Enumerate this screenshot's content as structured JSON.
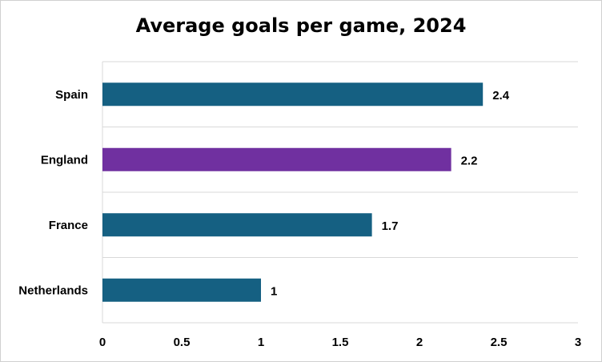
{
  "chart_data": {
    "type": "bar",
    "orientation": "horizontal",
    "title": "Average goals per game, 2024",
    "categories": [
      "Spain",
      "England",
      "France",
      "Netherlands"
    ],
    "values": [
      2.4,
      2.2,
      1.7,
      1
    ],
    "value_labels": [
      "2.4",
      "2.2",
      "1.7",
      "1"
    ],
    "bar_colors": [
      "#156082",
      "#7030a0",
      "#156082",
      "#156082"
    ],
    "xlim": [
      0,
      3
    ],
    "xticks": [
      0,
      0.5,
      1,
      1.5,
      2,
      2.5,
      3
    ],
    "xtick_labels": [
      "0",
      "0.5",
      "1",
      "1.5",
      "2",
      "2.5",
      "3"
    ],
    "xlabel": "",
    "ylabel": "",
    "grid": "horizontal separators",
    "legend": "none"
  }
}
